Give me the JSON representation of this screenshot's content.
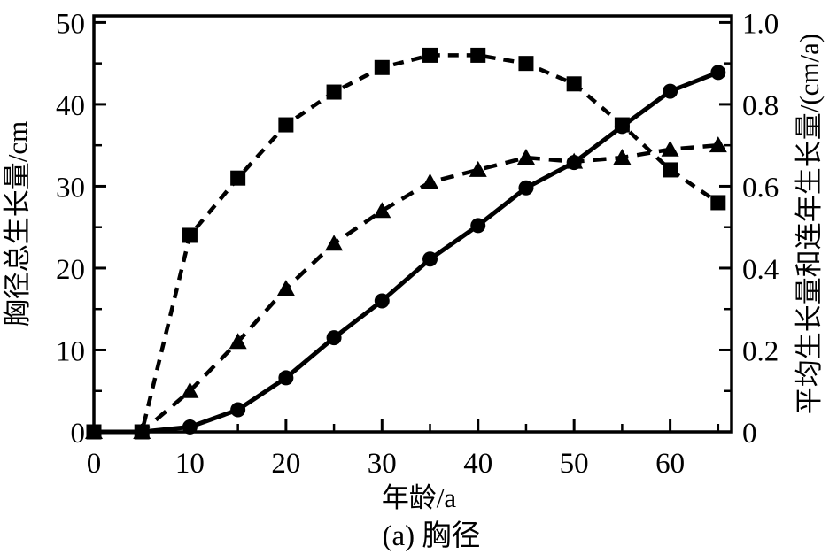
{
  "figure": {
    "background": "#ffffff",
    "ink": "#000000",
    "caption": "(a) 胸径",
    "x_axis_title": "年龄/a",
    "left_axis_title": "胸径总生长量/cm",
    "right_axis_title": "平均生长量和连年生长量/(cm/a)"
  },
  "chart_data": {
    "type": "line",
    "title": "",
    "xlabel": "年龄/a",
    "ylabel_left": "胸径总生长量/cm",
    "ylabel_right": "平均生长量和连年生长量/(cm/a)",
    "grid": false,
    "legend": "none",
    "x": [
      0,
      5,
      10,
      15,
      20,
      25,
      30,
      35,
      40,
      45,
      50,
      55,
      60,
      65
    ],
    "x_range": [
      0,
      66.4
    ],
    "x_ticks": {
      "major": [
        0,
        10,
        20,
        30,
        40,
        50,
        60
      ],
      "labels": [
        "0",
        "10",
        "20",
        "30",
        "40",
        "50",
        "60"
      ],
      "minor": [
        5,
        15,
        25,
        35,
        45,
        55,
        65
      ]
    },
    "left_axis": {
      "range": [
        0,
        50.8
      ],
      "ticks_major": [
        0,
        10,
        20,
        30,
        40,
        50
      ],
      "tick_labels": [
        "0",
        "10",
        "20",
        "30",
        "40",
        "50"
      ],
      "ticks_minor": [
        5,
        15,
        25,
        35,
        45
      ]
    },
    "right_axis": {
      "range": [
        0,
        1.016
      ],
      "ticks_major": [
        0,
        0.2,
        0.4,
        0.6,
        0.8,
        1.0
      ],
      "tick_labels": [
        "0",
        "0.2",
        "0.4",
        "0.6",
        "0.8",
        "1.0"
      ],
      "ticks_minor": [
        0.1,
        0.3,
        0.5,
        0.7,
        0.9
      ]
    },
    "series": [
      {
        "name": "胸径总生长量",
        "axis": "left",
        "unit": "cm",
        "marker": "circle",
        "line_style": "solid",
        "values": [
          0,
          0,
          0.6,
          2.7,
          6.6,
          11.5,
          16.0,
          21.1,
          25.2,
          29.8,
          32.9,
          37.3,
          41.6,
          43.9
        ]
      },
      {
        "name": "平均生长量",
        "axis": "right",
        "unit": "cm/a",
        "marker": "triangle",
        "line_style": "dashed",
        "values": [
          0,
          0,
          0.1,
          0.22,
          0.35,
          0.46,
          0.54,
          0.61,
          0.64,
          0.67,
          0.66,
          0.67,
          0.69,
          0.7
        ]
      },
      {
        "name": "连年生长量",
        "axis": "right",
        "unit": "cm/a",
        "marker": "square",
        "line_style": "dashed",
        "values": [
          0,
          0,
          0.48,
          0.62,
          0.75,
          0.83,
          0.89,
          0.92,
          0.92,
          0.9,
          0.85,
          0.75,
          0.64,
          0.56
        ]
      }
    ]
  }
}
